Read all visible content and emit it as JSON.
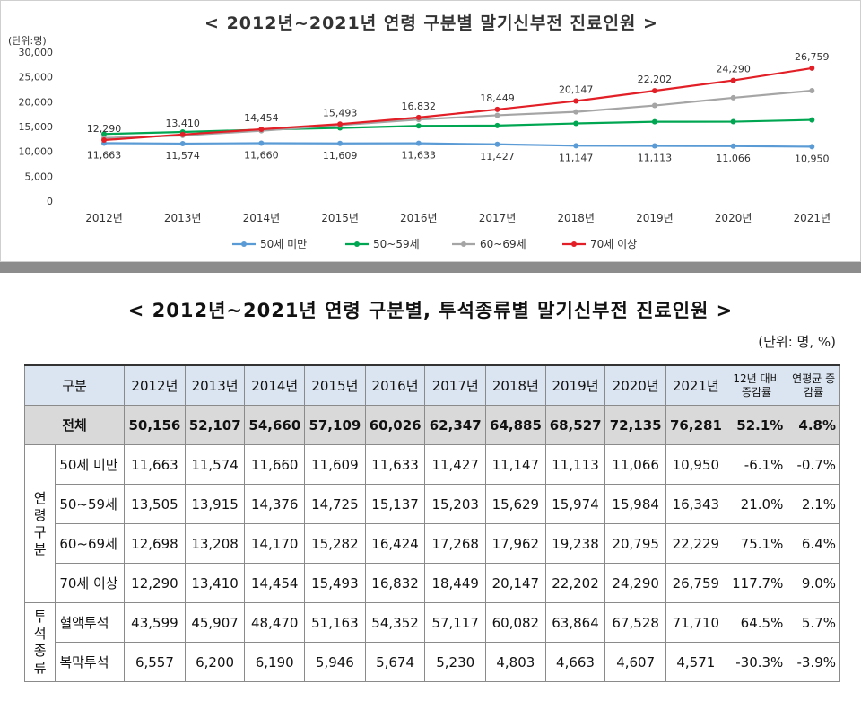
{
  "chart": {
    "title": "< 2012년~2021년 연령 구분별 말기신부전 진료인원 >",
    "unit": "(단위:명)"
  },
  "chart_data": {
    "type": "line",
    "categories": [
      "2012년",
      "2013년",
      "2014년",
      "2015년",
      "2016년",
      "2017년",
      "2018년",
      "2019년",
      "2020년",
      "2021년"
    ],
    "ylim": [
      0,
      30000
    ],
    "yticks": [
      "0",
      "5,000",
      "10,000",
      "15,000",
      "20,000",
      "25,000",
      "30,000"
    ],
    "grid": false,
    "legend": "bottom",
    "series": [
      {
        "name": "50세 미만",
        "color": "#5b9bd5",
        "values": [
          11663,
          11574,
          11660,
          11609,
          11633,
          11427,
          11147,
          11113,
          11066,
          10950
        ],
        "labels": [
          "11,663",
          "11,574",
          "11,660",
          "11,609",
          "11,633",
          "11,427",
          "11,147",
          "11,113",
          "11,066",
          "10,950"
        ]
      },
      {
        "name": "50~59세",
        "color": "#00a651",
        "values": [
          13505,
          13915,
          14376,
          14725,
          15137,
          15203,
          15629,
          15974,
          15984,
          16343
        ]
      },
      {
        "name": "60~69세",
        "color": "#a5a5a5",
        "values": [
          12698,
          13208,
          14170,
          15282,
          16424,
          17268,
          17962,
          19238,
          20795,
          22229
        ]
      },
      {
        "name": "70세 이상",
        "color": "#e21f26",
        "values": [
          12290,
          13410,
          14454,
          15493,
          16832,
          18449,
          20147,
          22202,
          24290,
          26759
        ],
        "labels": [
          "12,290",
          "13,410",
          "14,454",
          "15,493",
          "16,832",
          "18,449",
          "20,147",
          "22,202",
          "24,290",
          "26,759"
        ]
      }
    ]
  },
  "table": {
    "title": "< 2012년~2021년 연령 구분별, 투석종류별 말기신부전 진료인원 >",
    "unit": "(단위: 명, %)",
    "header": {
      "group": "구분",
      "years": [
        "2012년",
        "2013년",
        "2014년",
        "2015년",
        "2016년",
        "2017년",
        "2018년",
        "2019년",
        "2020년",
        "2021년"
      ],
      "rate1": "12년 대비 증감률",
      "rate2": "연평균 증감률"
    },
    "total": {
      "label": "전체",
      "values": [
        "50,156",
        "52,107",
        "54,660",
        "57,109",
        "60,026",
        "62,347",
        "64,885",
        "68,527",
        "72,135",
        "76,281"
      ],
      "rate1": "52.1%",
      "rate2": "4.8%"
    },
    "age_group_label": "연령구분",
    "age_rows": [
      {
        "label": "50세 미만",
        "values": [
          "11,663",
          "11,574",
          "11,660",
          "11,609",
          "11,633",
          "11,427",
          "11,147",
          "11,113",
          "11,066",
          "10,950"
        ],
        "rate1": "-6.1%",
        "rate2": "-0.7%"
      },
      {
        "label": "50~59세",
        "values": [
          "13,505",
          "13,915",
          "14,376",
          "14,725",
          "15,137",
          "15,203",
          "15,629",
          "15,974",
          "15,984",
          "16,343"
        ],
        "rate1": "21.0%",
        "rate2": "2.1%"
      },
      {
        "label": "60~69세",
        "values": [
          "12,698",
          "13,208",
          "14,170",
          "15,282",
          "16,424",
          "17,268",
          "17,962",
          "19,238",
          "20,795",
          "22,229"
        ],
        "rate1": "75.1%",
        "rate2": "6.4%"
      },
      {
        "label": "70세 이상",
        "values": [
          "12,290",
          "13,410",
          "14,454",
          "15,493",
          "16,832",
          "18,449",
          "20,147",
          "22,202",
          "24,290",
          "26,759"
        ],
        "rate1": "117.7%",
        "rate2": "9.0%"
      }
    ],
    "dialysis_group_label": "투석종류",
    "dialysis_rows": [
      {
        "label": "혈액투석",
        "values": [
          "43,599",
          "45,907",
          "48,470",
          "51,163",
          "54,352",
          "57,117",
          "60,082",
          "63,864",
          "67,528",
          "71,710"
        ],
        "rate1": "64.5%",
        "rate2": "5.7%"
      },
      {
        "label": "복막투석",
        "values": [
          "6,557",
          "6,200",
          "6,190",
          "5,946",
          "5,674",
          "5,230",
          "4,803",
          "4,663",
          "4,607",
          "4,571"
        ],
        "rate1": "-30.3%",
        "rate2": "-3.9%"
      }
    ]
  }
}
